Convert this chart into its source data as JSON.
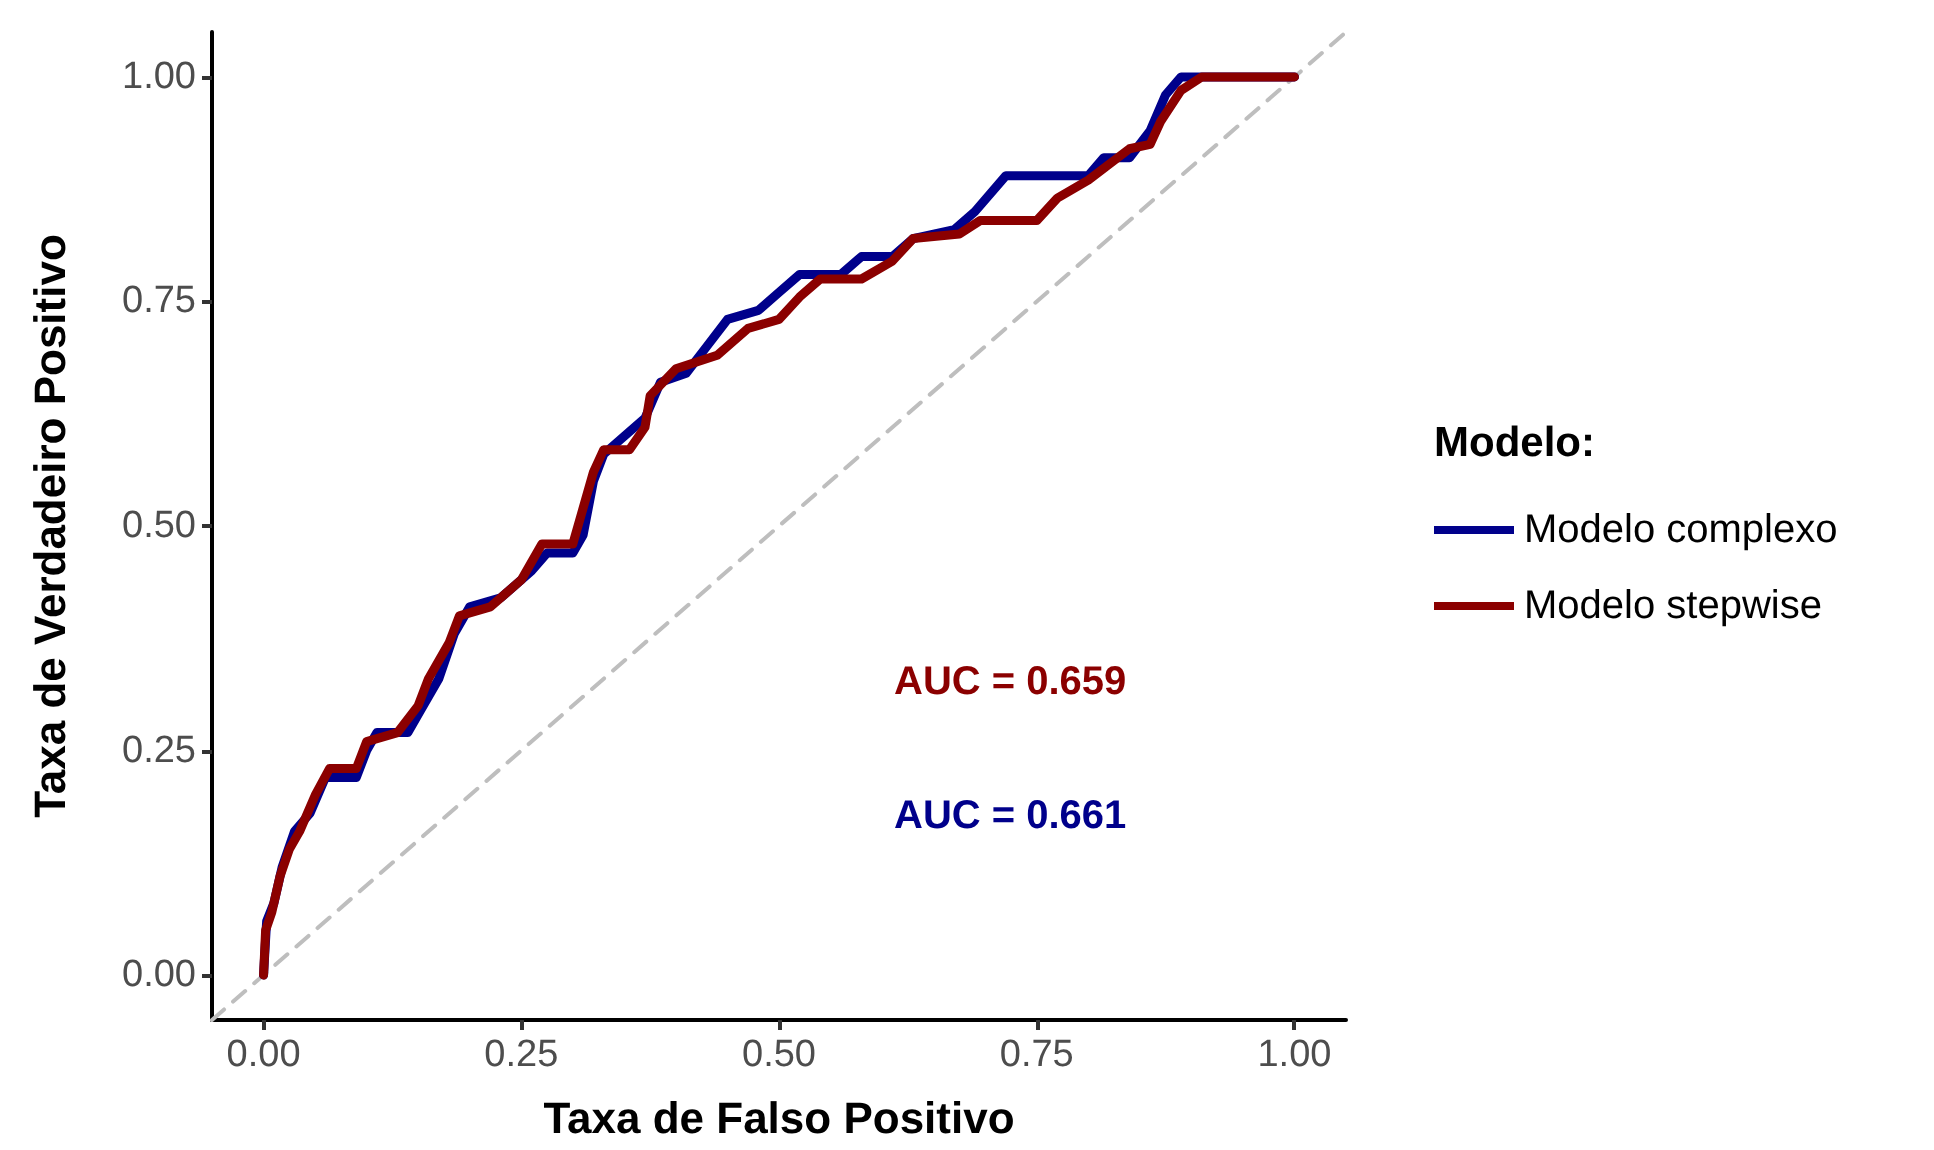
{
  "chart_data": {
    "type": "line",
    "xlabel": "Taxa de Falso Positivo",
    "ylabel": "Taxa de Verdadeiro Positivo",
    "legend_title": "Modelo:",
    "xlim": [
      -0.05,
      1.05
    ],
    "xticks": [
      {
        "value": 0,
        "label": "0.00"
      },
      {
        "value": 0.25,
        "label": "0.25"
      },
      {
        "value": 0.5,
        "label": "0.50"
      },
      {
        "value": 0.75,
        "label": "0.75"
      },
      {
        "value": 1,
        "label": "1.00"
      }
    ],
    "ylim": [
      -0.05,
      1.05
    ],
    "yticks": [
      {
        "value": 0,
        "label": "0.00"
      },
      {
        "value": 0.25,
        "label": "0.25"
      },
      {
        "value": 0.5,
        "label": "0.50"
      },
      {
        "value": 0.75,
        "label": "0.75"
      },
      {
        "value": 1,
        "label": "1.00"
      }
    ],
    "grid": false,
    "legend": "right",
    "marker": "none",
    "series": [
      {
        "name": "Modelo complexo",
        "color": "#00008b",
        "x": [
          0,
          0.003,
          0.01,
          0.018,
          0.03,
          0.045,
          0.06,
          0.09,
          0.1,
          0.11,
          0.14,
          0.15,
          0.17,
          0.185,
          0.2,
          0.23,
          0.26,
          0.275,
          0.3,
          0.31,
          0.32,
          0.33,
          0.35,
          0.37,
          0.385,
          0.41,
          0.43,
          0.45,
          0.48,
          0.5,
          0.52,
          0.56,
          0.58,
          0.61,
          0.63,
          0.67,
          0.69,
          0.72,
          0.8,
          0.815,
          0.84,
          0.86,
          0.875,
          0.89,
          1
        ],
        "values": [
          0,
          0.06,
          0.08,
          0.12,
          0.16,
          0.18,
          0.22,
          0.22,
          0.25,
          0.27,
          0.27,
          0.29,
          0.33,
          0.38,
          0.41,
          0.42,
          0.45,
          0.47,
          0.47,
          0.49,
          0.55,
          0.58,
          0.6,
          0.62,
          0.66,
          0.67,
          0.7,
          0.73,
          0.74,
          0.76,
          0.78,
          0.78,
          0.8,
          0.8,
          0.82,
          0.83,
          0.85,
          0.89,
          0.89,
          0.91,
          0.91,
          0.94,
          0.98,
          1,
          1
        ]
      },
      {
        "name": "Modelo stepwise",
        "color": "#8b0000",
        "x": [
          0,
          0.002,
          0.008,
          0.016,
          0.025,
          0.035,
          0.05,
          0.064,
          0.09,
          0.1,
          0.13,
          0.15,
          0.16,
          0.18,
          0.19,
          0.22,
          0.25,
          0.27,
          0.3,
          0.31,
          0.32,
          0.33,
          0.355,
          0.37,
          0.375,
          0.4,
          0.44,
          0.47,
          0.5,
          0.52,
          0.54,
          0.58,
          0.61,
          0.63,
          0.675,
          0.695,
          0.75,
          0.77,
          0.8,
          0.84,
          0.86,
          0.87,
          0.89,
          0.91,
          1
        ],
        "values": [
          0,
          0.05,
          0.07,
          0.11,
          0.14,
          0.16,
          0.2,
          0.23,
          0.23,
          0.26,
          0.27,
          0.3,
          0.33,
          0.37,
          0.4,
          0.41,
          0.44,
          0.48,
          0.48,
          0.52,
          0.56,
          0.585,
          0.585,
          0.61,
          0.645,
          0.675,
          0.69,
          0.72,
          0.73,
          0.755,
          0.775,
          0.775,
          0.795,
          0.82,
          0.825,
          0.84,
          0.84,
          0.865,
          0.885,
          0.92,
          0.925,
          0.95,
          0.985,
          1,
          1
        ]
      },
      {
        "color": "#bebebe",
        "line_style": "dashed",
        "x": [
          -0.05,
          1.05
        ],
        "values": [
          -0.05,
          1.05
        ]
      }
    ],
    "annotations": [
      "AUC = 0.661",
      "AUC = 0.659"
    ]
  }
}
